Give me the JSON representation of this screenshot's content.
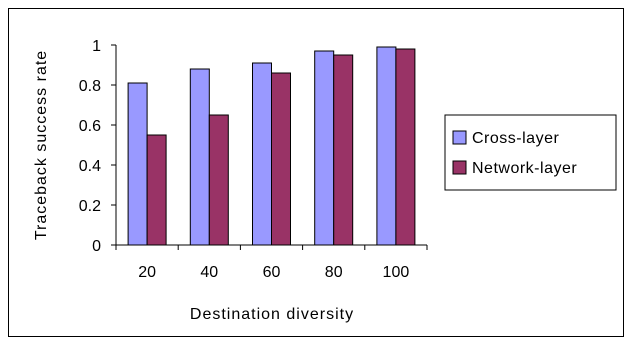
{
  "chart_data": {
    "type": "bar",
    "title": "",
    "xlabel": "Destination diversity",
    "ylabel": "Traceback success rate",
    "categories": [
      "20",
      "40",
      "60",
      "80",
      "100"
    ],
    "series": [
      {
        "name": "Cross-layer",
        "values": [
          0.81,
          0.88,
          0.91,
          0.97,
          0.99
        ],
        "color": "#9999ff"
      },
      {
        "name": "Network-layer",
        "values": [
          0.55,
          0.65,
          0.86,
          0.95,
          0.98
        ],
        "color": "#993366"
      }
    ],
    "ylim": [
      0,
      1
    ],
    "yticks": [
      "0",
      "0.2",
      "0.4",
      "0.6",
      "0.8",
      "1"
    ],
    "grid": false,
    "legend_position": "right"
  }
}
